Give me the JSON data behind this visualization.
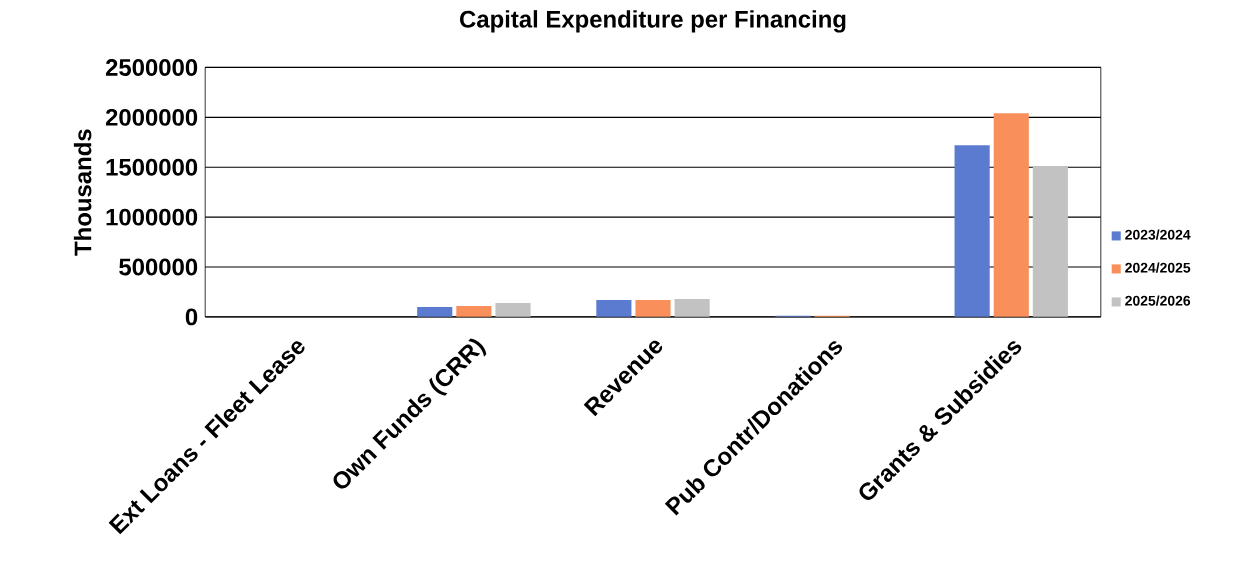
{
  "chart_data": {
    "type": "bar",
    "title": "Capital Expenditure per Financing",
    "ylabel": "Thousands",
    "categories": [
      "Ext Loans - Fleet Lease",
      "Own Funds (CRR)",
      "Revenue",
      "Pub Contr/Donations",
      "Grants & Subsidies"
    ],
    "series": [
      {
        "name": "2023/2024",
        "color": "#5b7bd0",
        "values": [
          0,
          100000,
          170000,
          10000,
          1720000
        ]
      },
      {
        "name": "2024/2025",
        "color": "#f98f5b",
        "values": [
          0,
          110000,
          170000,
          10000,
          2040000
        ]
      },
      {
        "name": "2025/2026",
        "color": "#c2c2c2",
        "values": [
          0,
          140000,
          180000,
          0,
          1510000
        ]
      }
    ],
    "ylim": [
      0,
      2500000
    ],
    "yticks": [
      0,
      500000,
      1000000,
      1500000,
      2000000,
      2500000
    ],
    "grid": "y",
    "legend": "right"
  }
}
